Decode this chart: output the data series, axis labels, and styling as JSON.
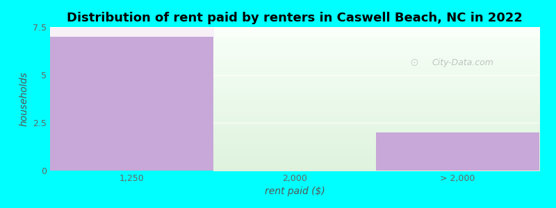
{
  "title": "Distribution of rent paid by renters in Caswell Beach, NC in 2022",
  "categories": [
    "1,250",
    "2,000",
    "> 2,000"
  ],
  "values": [
    7,
    0,
    2
  ],
  "bar_color": "#C8A8D8",
  "ylim": [
    0,
    7.5
  ],
  "yticks": [
    0,
    2.5,
    5.0,
    7.5
  ],
  "xlabel": "rent paid ($)",
  "ylabel": "households",
  "background_color": "#00FFFF",
  "plot_bg_left": "#C8A8D8",
  "title_fontsize": 13,
  "axis_label_fontsize": 10,
  "tick_fontsize": 9,
  "watermark": "City-Data.com",
  "bar_width": 1.0,
  "xlim": [
    -0.5,
    2.5
  ]
}
